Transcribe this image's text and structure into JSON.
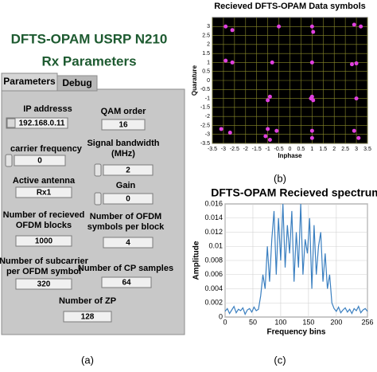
{
  "panel": {
    "title": "DFTS-OPAM USRP N210",
    "subtitle": "Rx Parameters",
    "tabs": [
      "Parameters",
      "Debug"
    ],
    "fields": [
      {
        "label": [
          "IP addresss"
        ],
        "value": "192.168.0.11"
      },
      {
        "label": [
          "QAM order"
        ],
        "value": "16"
      },
      {
        "label": [
          "carrier frequency"
        ],
        "value": "0"
      },
      {
        "label": [
          "Signal bandwidth",
          "(MHz)"
        ],
        "value": "2"
      },
      {
        "label": [
          "Active antenna"
        ],
        "value": "Rx1"
      },
      {
        "label": [
          "Gain"
        ],
        "value": "0"
      },
      {
        "label": [
          "Number of recieved",
          "OFDM blocks"
        ],
        "value": "1000"
      },
      {
        "label": [
          "Number of OFDM",
          "symbols per block"
        ],
        "value": "4"
      },
      {
        "label": [
          "Number of subcarrier",
          "per OFDM symbol"
        ],
        "value": "320"
      },
      {
        "label": [
          "Number of CP samples"
        ],
        "value": "64"
      },
      {
        "label": [
          "Number of ZP"
        ],
        "value": "128"
      }
    ]
  },
  "captions": [
    "(a)",
    "(b)",
    "(c)"
  ],
  "chart_data": [
    {
      "type": "scatter",
      "title": "Recieved DFTS-OPAM Data symbols",
      "x_label": "Inphase",
      "y_label": "Quarature",
      "xlim": [
        -3.5,
        3.5
      ],
      "xticks": [
        -3.5,
        -3,
        -2.5,
        -2,
        -1.5,
        -1,
        -0.5,
        0,
        0.5,
        1,
        1.5,
        2,
        2.5,
        3,
        3.5
      ],
      "ylim": [
        -3.5,
        3.5
      ],
      "yticks": [
        -3.5,
        -3,
        -2.5,
        -2,
        -1.5,
        -1,
        -0.5,
        0,
        0.5,
        1,
        1.5,
        2,
        2.5,
        3
      ],
      "grid": true,
      "background": "#000000",
      "grid_color": "#8a8a2a",
      "series": [
        {
          "color": "#e040e0",
          "x": [
            -2.9,
            -2.6,
            -0.5,
            1.0,
            1.05,
            2.9,
            3.2,
            -2.9,
            -2.6,
            -0.8,
            1.0,
            2.8,
            3.0,
            -1.0,
            -0.9,
            0.95,
            1.0,
            1.05,
            3.0,
            -3.1,
            -2.7,
            -1.0,
            -0.6,
            -1.1,
            -0.9,
            1.0,
            1.0,
            2.9,
            3.1
          ],
          "y": [
            3.0,
            2.8,
            3.0,
            3.0,
            2.7,
            3.1,
            3.0,
            1.1,
            1.0,
            1.0,
            1.0,
            0.9,
            0.95,
            -1.1,
            -0.9,
            -1.0,
            -0.9,
            -1.1,
            -1.0,
            -2.7,
            -2.9,
            -2.7,
            -2.8,
            -3.1,
            -3.3,
            -2.8,
            -3.2,
            -2.8,
            -3.2
          ]
        }
      ]
    },
    {
      "type": "line",
      "title": "DFTS-OPAM Recieved spectrum",
      "x_label": "Frequency bins",
      "y_label": "Amplitude",
      "xlim": [
        0,
        256
      ],
      "xticks": [
        0,
        50,
        100,
        150,
        200,
        256
      ],
      "ylim": [
        0,
        0.016
      ],
      "yticks": [
        0,
        0.002,
        0.004,
        0.006,
        0.008,
        0.01,
        0.012,
        0.014,
        0.016
      ],
      "grid": true,
      "background": "#ffffff",
      "grid_color": "#d0d0d0",
      "x": [
        0,
        4,
        8,
        12,
        16,
        20,
        24,
        28,
        32,
        36,
        40,
        44,
        48,
        52,
        56,
        60,
        64,
        68,
        72,
        76,
        80,
        84,
        88,
        92,
        96,
        100,
        104,
        108,
        112,
        116,
        120,
        124,
        128,
        132,
        136,
        140,
        144,
        148,
        152,
        156,
        160,
        164,
        168,
        172,
        176,
        180,
        184,
        188,
        192,
        196,
        200,
        204,
        208,
        212,
        216,
        220,
        224,
        228,
        232,
        236,
        240,
        244,
        248,
        252,
        256
      ],
      "series": [
        {
          "color": "#3a7fc0",
          "values": [
            0.0008,
            0.0012,
            0.0005,
            0.001,
            0.0015,
            0.0006,
            0.0011,
            0.0009,
            0.0013,
            0.0004,
            0.001,
            0.0012,
            0.0007,
            0.0014,
            0.0009,
            0.0011,
            0.003,
            0.006,
            0.004,
            0.01,
            0.005,
            0.011,
            0.015,
            0.006,
            0.014,
            0.008,
            0.016,
            0.007,
            0.013,
            0.009,
            0.015,
            0.005,
            0.012,
            0.007,
            0.016,
            0.006,
            0.011,
            0.009,
            0.014,
            0.004,
            0.013,
            0.006,
            0.01,
            0.012,
            0.005,
            0.009,
            0.004,
            0.006,
            0.002,
            0.0012,
            0.0008,
            0.0014,
            0.0006,
            0.001,
            0.0013,
            0.0007,
            0.0011,
            0.0005,
            0.0012,
            0.0009,
            0.0015,
            0.0006,
            0.001,
            0.0012,
            0.0008
          ]
        }
      ]
    }
  ]
}
